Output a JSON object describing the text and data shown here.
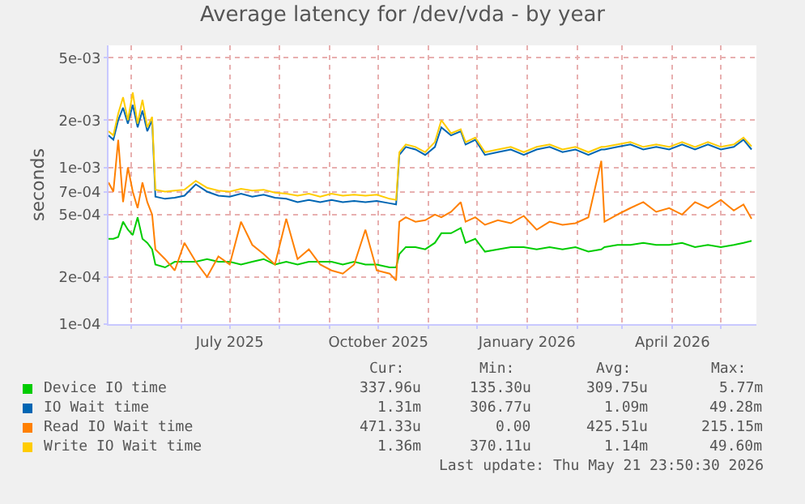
{
  "chart_data": {
    "type": "line",
    "title": "Average latency for /dev/vda - by year",
    "ylabel": "seconds",
    "log": "y",
    "grid": true,
    "legend": "bottom",
    "marker": "none",
    "line_style": "solid",
    "ylim": [
      0.0001,
      0.006
    ],
    "yticks": [
      {
        "value": 0.0001,
        "label": "1e-04"
      },
      {
        "value": 0.0002,
        "label": "2e-04"
      },
      {
        "value": 0.0005,
        "label": "5e-04"
      },
      {
        "value": 0.0007,
        "label": "7e-04"
      },
      {
        "value": 0.001,
        "label": "1e-03"
      },
      {
        "value": 0.002,
        "label": "2e-03"
      },
      {
        "value": 0.005,
        "label": "5e-03"
      }
    ],
    "xlim": [
      "2025-04-17",
      "2026-05-23"
    ],
    "xticks": [
      {
        "value": "2025-05-01",
        "label": null
      },
      {
        "value": "2025-06-01",
        "label": null
      },
      {
        "value": "2025-07-01",
        "label": "July 2025"
      },
      {
        "value": "2025-08-01",
        "label": null
      },
      {
        "value": "2025-09-01",
        "label": null
      },
      {
        "value": "2025-10-01",
        "label": "October 2025"
      },
      {
        "value": "2025-11-01",
        "label": null
      },
      {
        "value": "2025-12-01",
        "label": null
      },
      {
        "value": "2026-01-01",
        "label": "January 2026"
      },
      {
        "value": "2026-02-01",
        "label": null
      },
      {
        "value": "2026-03-01",
        "label": null
      },
      {
        "value": "2026-04-01",
        "label": "April 2026"
      },
      {
        "value": "2026-05-01",
        "label": null
      }
    ],
    "x": [
      "2025-04-17",
      "2025-04-20",
      "2025-04-23",
      "2025-04-26",
      "2025-04-29",
      "2025-05-02",
      "2025-05-05",
      "2025-05-08",
      "2025-05-11",
      "2025-05-14",
      "2025-05-16",
      "2025-05-22",
      "2025-05-28",
      "2025-06-03",
      "2025-06-10",
      "2025-06-17",
      "2025-06-24",
      "2025-07-01",
      "2025-07-08",
      "2025-07-15",
      "2025-07-22",
      "2025-07-29",
      "2025-08-05",
      "2025-08-12",
      "2025-08-19",
      "2025-08-26",
      "2025-09-02",
      "2025-09-09",
      "2025-09-16",
      "2025-09-23",
      "2025-09-30",
      "2025-10-08",
      "2025-10-12",
      "2025-10-14",
      "2025-10-18",
      "2025-10-24",
      "2025-10-30",
      "2025-11-05",
      "2025-11-09",
      "2025-11-15",
      "2025-11-21",
      "2025-11-24",
      "2025-11-30",
      "2025-12-06",
      "2025-12-14",
      "2025-12-22",
      "2025-12-30",
      "2026-01-07",
      "2026-01-15",
      "2026-01-23",
      "2026-01-31",
      "2026-02-08",
      "2026-02-16",
      "2026-02-18",
      "2026-02-26",
      "2026-03-06",
      "2026-03-14",
      "2026-03-22",
      "2026-03-30",
      "2026-04-07",
      "2026-04-15",
      "2026-04-23",
      "2026-05-01",
      "2026-05-09",
      "2026-05-15",
      "2026-05-20"
    ],
    "series": [
      {
        "name": "Device IO time",
        "color": "#00cc00",
        "values": [
          0.00035,
          0.00035,
          0.00036,
          0.00045,
          0.0004,
          0.00037,
          0.00048,
          0.00035,
          0.00033,
          0.0003,
          0.00024,
          0.00023,
          0.00025,
          0.00025,
          0.00025,
          0.00026,
          0.00025,
          0.00025,
          0.00024,
          0.00025,
          0.00026,
          0.00024,
          0.00025,
          0.00024,
          0.00025,
          0.00025,
          0.00025,
          0.00024,
          0.00025,
          0.00024,
          0.00024,
          0.00023,
          0.00023,
          0.00028,
          0.00031,
          0.00031,
          0.0003,
          0.00033,
          0.00038,
          0.00038,
          0.00041,
          0.00033,
          0.00035,
          0.00029,
          0.0003,
          0.00031,
          0.00031,
          0.0003,
          0.00031,
          0.0003,
          0.00031,
          0.00029,
          0.0003,
          0.00031,
          0.00032,
          0.00032,
          0.00033,
          0.00032,
          0.00032,
          0.00033,
          0.00031,
          0.00032,
          0.00031,
          0.00032,
          0.00033,
          0.00034
        ]
      },
      {
        "name": "IO Wait time",
        "color": "#0066b3",
        "values": [
          0.0016,
          0.0015,
          0.002,
          0.0024,
          0.0019,
          0.0025,
          0.0018,
          0.0023,
          0.0017,
          0.002,
          0.00065,
          0.00063,
          0.00064,
          0.00066,
          0.00078,
          0.0007,
          0.00066,
          0.00065,
          0.00068,
          0.00065,
          0.00067,
          0.00064,
          0.00063,
          0.0006,
          0.00062,
          0.0006,
          0.00062,
          0.0006,
          0.00061,
          0.0006,
          0.00061,
          0.00059,
          0.00058,
          0.0012,
          0.00135,
          0.0013,
          0.0012,
          0.00135,
          0.0018,
          0.0016,
          0.0017,
          0.0014,
          0.0015,
          0.0012,
          0.00125,
          0.0013,
          0.0012,
          0.0013,
          0.00135,
          0.00125,
          0.0013,
          0.0012,
          0.0013,
          0.0013,
          0.00135,
          0.0014,
          0.0013,
          0.00135,
          0.0013,
          0.0014,
          0.0013,
          0.0014,
          0.0013,
          0.00135,
          0.0015,
          0.0013
        ]
      },
      {
        "name": "Read IO Wait time",
        "color": "#ff8000",
        "values": [
          0.0008,
          0.0007,
          0.0015,
          0.0006,
          0.001,
          0.0007,
          0.00055,
          0.0008,
          0.0006,
          0.0005,
          0.0003,
          0.00026,
          0.00022,
          0.00033,
          0.00025,
          0.0002,
          0.00027,
          0.00024,
          0.00045,
          0.00032,
          0.00028,
          0.00024,
          0.00047,
          0.00026,
          0.0003,
          0.00024,
          0.00022,
          0.00021,
          0.00024,
          0.0004,
          0.00022,
          0.00021,
          0.00019,
          0.00045,
          0.00048,
          0.00045,
          0.00046,
          0.0005,
          0.00048,
          0.00052,
          0.0006,
          0.00045,
          0.00048,
          0.00043,
          0.00046,
          0.00044,
          0.00049,
          0.0004,
          0.00045,
          0.00043,
          0.00044,
          0.00048,
          0.0011,
          0.00045,
          0.0005,
          0.00055,
          0.0006,
          0.00052,
          0.00055,
          0.0005,
          0.0006,
          0.00055,
          0.00062,
          0.00053,
          0.00058,
          0.00047
        ]
      },
      {
        "name": "Write IO Wait time",
        "color": "#ffcc00",
        "values": [
          0.0017,
          0.0016,
          0.0022,
          0.0028,
          0.002,
          0.003,
          0.0019,
          0.0027,
          0.0018,
          0.0021,
          0.00072,
          0.0007,
          0.00071,
          0.00072,
          0.00082,
          0.00074,
          0.00071,
          0.0007,
          0.00073,
          0.00071,
          0.00072,
          0.00069,
          0.00068,
          0.00066,
          0.00068,
          0.00065,
          0.00068,
          0.00066,
          0.00067,
          0.00066,
          0.00067,
          0.00063,
          0.00062,
          0.00125,
          0.0014,
          0.00135,
          0.00125,
          0.00145,
          0.002,
          0.00165,
          0.00175,
          0.00145,
          0.00155,
          0.00125,
          0.0013,
          0.00135,
          0.00125,
          0.00135,
          0.0014,
          0.0013,
          0.00135,
          0.00125,
          0.00135,
          0.00135,
          0.0014,
          0.00145,
          0.00135,
          0.0014,
          0.00135,
          0.00145,
          0.00135,
          0.00145,
          0.00135,
          0.0014,
          0.00155,
          0.00136
        ]
      }
    ],
    "annotations": [
      "Cur:",
      "Min:",
      "Avg:",
      "Max:",
      "337.96u",
      "135.30u",
      "309.75u",
      "5.77m",
      "1.31m",
      "306.77u",
      "1.09m",
      "49.28m",
      "471.33u",
      "0.00",
      "425.51u",
      "215.15m",
      "1.36m",
      "370.11u",
      "1.14m",
      "49.60m",
      "Last update: Thu May 21 23:50:30 2026"
    ]
  }
}
